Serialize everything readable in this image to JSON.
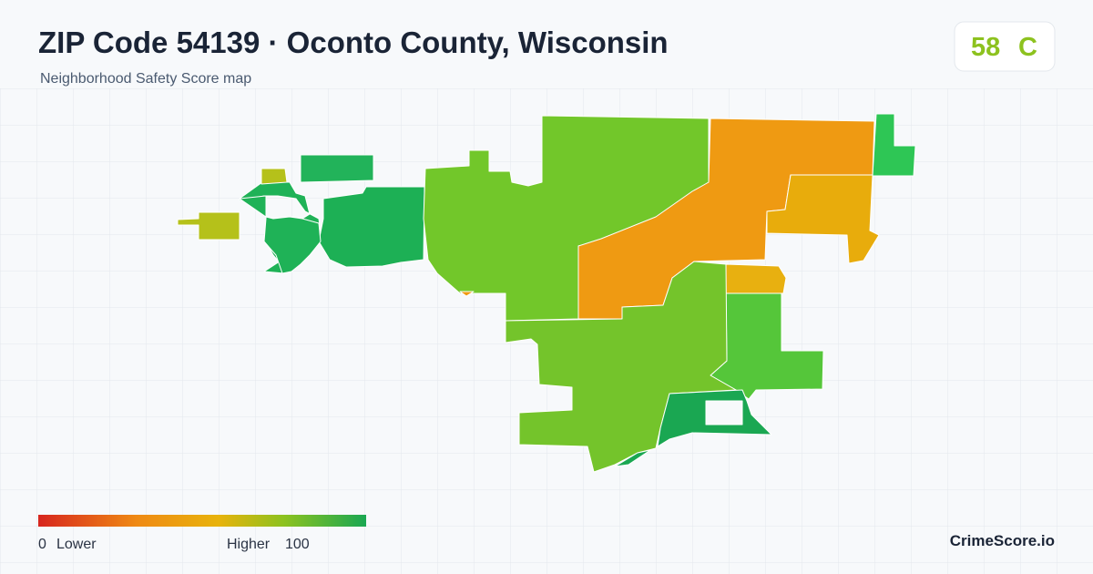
{
  "header": {
    "title": "ZIP Code 54139 · Oconto County, Wisconsin",
    "subtitle": "Neighborhood Safety Score map"
  },
  "score": {
    "value": "58",
    "grade": "C"
  },
  "legend": {
    "min": "0",
    "low_label": "Lower",
    "high_label": "Higher",
    "max": "100"
  },
  "brand": "CrimeScore.io"
}
